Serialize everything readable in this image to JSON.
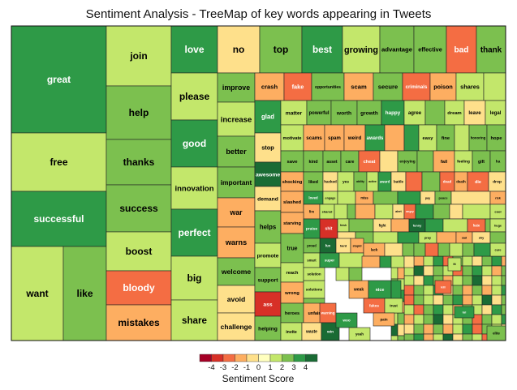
{
  "chart_data": {
    "type": "treemap",
    "title": "Sentiment Analysis - TreeMap of key words appearing in Tweets",
    "color_scale": {
      "title": "Sentiment Score",
      "ticks": [
        "-4",
        "-3",
        "-2",
        "-1",
        "0",
        "1",
        "2",
        "3",
        "4"
      ],
      "colors": {
        "-5": "#a50026",
        "-4": "#d73027",
        "-3": "#f46d43",
        "-2": "#fdae61",
        "-1": "#fee08b",
        "0": "#ffffbf",
        "1": "#c3e76b",
        "2": "#7cc04f",
        "3": "#2e9a47",
        "4": "#1a6b34"
      }
    },
    "words": [
      {
        "word": "great",
        "score": 3
      },
      {
        "word": "free",
        "score": 1
      },
      {
        "word": "successful",
        "score": 3
      },
      {
        "word": "want",
        "score": 1
      },
      {
        "word": "like",
        "score": 2
      },
      {
        "word": "join",
        "score": 1
      },
      {
        "word": "help",
        "score": 2
      },
      {
        "word": "thanks",
        "score": 2
      },
      {
        "word": "success",
        "score": 2
      },
      {
        "word": "boost",
        "score": 1
      },
      {
        "word": "bloody",
        "score": -3
      },
      {
        "word": "mistakes",
        "score": -2
      },
      {
        "word": "love",
        "score": 3
      },
      {
        "word": "please",
        "score": 1
      },
      {
        "word": "good",
        "score": 3
      },
      {
        "word": "innovation",
        "score": 1
      },
      {
        "word": "perfect",
        "score": 3
      },
      {
        "word": "big",
        "score": 1
      },
      {
        "word": "share",
        "score": 1
      },
      {
        "word": "no",
        "score": -1
      },
      {
        "word": "top",
        "score": 2
      },
      {
        "word": "best",
        "score": 3
      },
      {
        "word": "growing",
        "score": 1
      },
      {
        "word": "advantage",
        "score": 2
      },
      {
        "word": "effective",
        "score": 2
      },
      {
        "word": "bad",
        "score": -3
      },
      {
        "word": "thank",
        "score": 2
      },
      {
        "word": "improve",
        "score": 2
      },
      {
        "word": "crash",
        "score": -2
      },
      {
        "word": "fake",
        "score": -3
      },
      {
        "word": "opportunities",
        "score": 2
      },
      {
        "word": "scam",
        "score": -2
      },
      {
        "word": "secure",
        "score": 2
      },
      {
        "word": "criminals",
        "score": -3
      },
      {
        "word": "poison",
        "score": -2
      },
      {
        "word": "shares",
        "score": 1
      },
      {
        "word": "increase",
        "score": 1
      },
      {
        "word": "better",
        "score": 2
      },
      {
        "word": "important",
        "score": 2
      },
      {
        "word": "war",
        "score": -2
      },
      {
        "word": "warns",
        "score": -2
      },
      {
        "word": "welcome",
        "score": 2
      },
      {
        "word": "avoid",
        "score": -1
      },
      {
        "word": "challenge",
        "score": -1
      },
      {
        "word": "glad",
        "score": 3
      },
      {
        "word": "stop",
        "score": -1
      },
      {
        "word": "awesome",
        "score": 4
      },
      {
        "word": "demand",
        "score": -1
      },
      {
        "word": "helps",
        "score": 2
      },
      {
        "word": "promote",
        "score": 1
      },
      {
        "word": "support",
        "score": 2
      },
      {
        "word": "ass",
        "score": -4
      },
      {
        "word": "helping",
        "score": 2
      },
      {
        "word": "matter",
        "score": 1
      },
      {
        "word": "powerful",
        "score": 2
      },
      {
        "word": "worth",
        "score": 2
      },
      {
        "word": "growth",
        "score": 2
      },
      {
        "word": "happy",
        "score": 3
      },
      {
        "word": "agree",
        "score": 1
      },
      {
        "word": "dream",
        "score": 1
      },
      {
        "word": "leave",
        "score": -1
      },
      {
        "word": "legal",
        "score": 1
      },
      {
        "word": "motivate",
        "score": 1
      },
      {
        "word": "scams",
        "score": -2
      },
      {
        "word": "spam",
        "score": -2
      },
      {
        "word": "weird",
        "score": -2
      },
      {
        "word": "awards",
        "score": 3
      },
      {
        "word": "easy",
        "score": 1
      },
      {
        "word": "fine",
        "score": 2
      },
      {
        "word": "honoring",
        "score": 2
      },
      {
        "word": "hope",
        "score": 2
      },
      {
        "word": "save",
        "score": 2
      },
      {
        "word": "kind",
        "score": 2
      },
      {
        "word": "asset",
        "score": 2
      },
      {
        "word": "care",
        "score": 2
      },
      {
        "word": "cheat",
        "score": -3
      },
      {
        "word": "enjoying",
        "score": 2
      },
      {
        "word": "fail",
        "score": -2
      },
      {
        "word": "feeling",
        "score": 1
      },
      {
        "word": "gift",
        "score": 2
      },
      {
        "word": "ha",
        "score": 2
      },
      {
        "word": "shocking",
        "score": -2
      },
      {
        "word": "liked",
        "score": 2
      },
      {
        "word": "hacked",
        "score": -1
      },
      {
        "word": "yes",
        "score": 1
      },
      {
        "word": "ability",
        "score": 2
      },
      {
        "word": "active",
        "score": 1
      },
      {
        "word": "award",
        "score": 3
      },
      {
        "word": "battle",
        "score": -1
      },
      {
        "word": "dead",
        "score": -3
      },
      {
        "word": "death",
        "score": -2
      },
      {
        "word": "die",
        "score": -3
      },
      {
        "word": "drop",
        "score": -1
      },
      {
        "word": "slashed",
        "score": -2
      },
      {
        "word": "loved",
        "score": 3
      },
      {
        "word": "engage",
        "score": 1
      },
      {
        "word": "miss",
        "score": -2
      },
      {
        "word": "pay",
        "score": -1
      },
      {
        "word": "peace",
        "score": 2
      },
      {
        "word": "risk",
        "score": -2
      },
      {
        "word": "prospect",
        "score": 1
      },
      {
        "word": "fire",
        "score": -2
      },
      {
        "word": "shared",
        "score": 1
      },
      {
        "word": "alert",
        "score": -1
      },
      {
        "word": "angry",
        "score": -3
      },
      {
        "word": "cool",
        "score": 1
      },
      {
        "word": "starving",
        "score": -2
      },
      {
        "word": "shit",
        "score": -4
      },
      {
        "word": "fresh",
        "score": 1
      },
      {
        "word": "fight",
        "score": -1
      },
      {
        "word": "funny",
        "score": 4
      },
      {
        "word": "hate",
        "score": -3
      },
      {
        "word": "huge",
        "score": 1
      },
      {
        "word": "praise",
        "score": 3
      },
      {
        "word": "fun",
        "score": 4
      },
      {
        "word": "pray",
        "score": 1
      },
      {
        "word": "sad",
        "score": -2
      },
      {
        "word": "shy",
        "score": -1
      },
      {
        "word": "true",
        "score": 2
      },
      {
        "word": "reach",
        "score": 1
      },
      {
        "word": "proud",
        "score": 2
      },
      {
        "word": "hard",
        "score": -1
      },
      {
        "word": "stupid",
        "score": -2
      },
      {
        "word": "smart",
        "score": 1
      },
      {
        "word": "super",
        "score": 3
      },
      {
        "word": "lack",
        "score": -2
      },
      {
        "word": "wrong",
        "score": -2
      },
      {
        "word": "solutions",
        "score": 1
      },
      {
        "word": "solution",
        "score": 1
      },
      {
        "word": "weak",
        "score": -2
      },
      {
        "word": "nice",
        "score": 3
      },
      {
        "word": "fit",
        "score": 1
      },
      {
        "word": "cure",
        "score": 1
      },
      {
        "word": "kill",
        "score": -3
      },
      {
        "word": "useful",
        "score": 2
      },
      {
        "word": "fakes",
        "score": -3
      },
      {
        "word": "trust",
        "score": 1
      },
      {
        "word": "heroes",
        "score": 2
      },
      {
        "word": "unfair",
        "score": -2
      },
      {
        "word": "warning",
        "score": -3
      },
      {
        "word": "lol",
        "score": 3
      },
      {
        "word": "invite",
        "score": 1
      },
      {
        "word": "waste",
        "score": -1
      },
      {
        "word": "win",
        "score": 4
      },
      {
        "word": "woo",
        "score": 3
      },
      {
        "word": "pain",
        "score": -2
      },
      {
        "word": "yeah",
        "score": 1
      },
      {
        "word": "elite",
        "score": 2
      },
      {
        "word": "clear",
        "score": 1
      },
      {
        "word": "interest",
        "score": 1
      },
      {
        "word": "excited",
        "score": 3
      },
      {
        "word": "recognition",
        "score": 2
      },
      {
        "word": "odd",
        "score": -2
      },
      {
        "word": "robs",
        "score": -2
      },
      {
        "word": "abuse",
        "score": -3
      },
      {
        "word": "positive",
        "score": 2
      },
      {
        "word": "benefit",
        "score": 2
      },
      {
        "word": "grand",
        "score": 3
      },
      {
        "word": "feel",
        "score": 1
      }
    ]
  }
}
